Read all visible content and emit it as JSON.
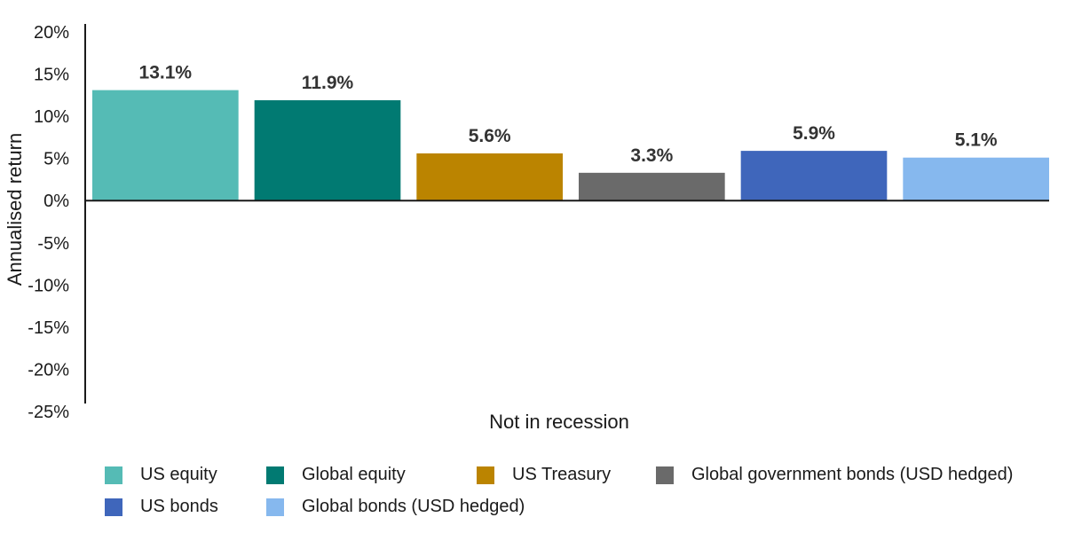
{
  "chart_data": {
    "type": "bar",
    "title": "",
    "xlabel": "Not in recession",
    "ylabel": "Annualised return",
    "ylim": [
      -25,
      20
    ],
    "yticks": [
      20,
      15,
      10,
      5,
      0,
      -5,
      -10,
      -15,
      -20,
      -25
    ],
    "ytick_labels": [
      "20%",
      "15%",
      "10%",
      "5%",
      "0%",
      "-5%",
      "-10%",
      "-15%",
      "-20%",
      "-25%"
    ],
    "categories": [
      "Not in recession"
    ],
    "grid": false,
    "legend_position": "bottom",
    "series": [
      {
        "name": "US equity",
        "values": [
          13.1
        ],
        "label": "13.1%",
        "color": "#55bbb5"
      },
      {
        "name": "Global equity",
        "values": [
          11.9
        ],
        "label": "11.9%",
        "color": "#017a72"
      },
      {
        "name": "US Treasury",
        "values": [
          5.6
        ],
        "label": "5.6%",
        "color": "#bb8400"
      },
      {
        "name": "Global government bonds (USD hedged)",
        "values": [
          3.3
        ],
        "label": "3.3%",
        "color": "#6a6a6a"
      },
      {
        "name": "US bonds",
        "values": [
          5.9
        ],
        "label": "5.9%",
        "color": "#3f66bb"
      },
      {
        "name": "Global bonds (USD hedged)",
        "values": [
          5.1
        ],
        "label": "5.1%",
        "color": "#86b8ee"
      }
    ]
  }
}
